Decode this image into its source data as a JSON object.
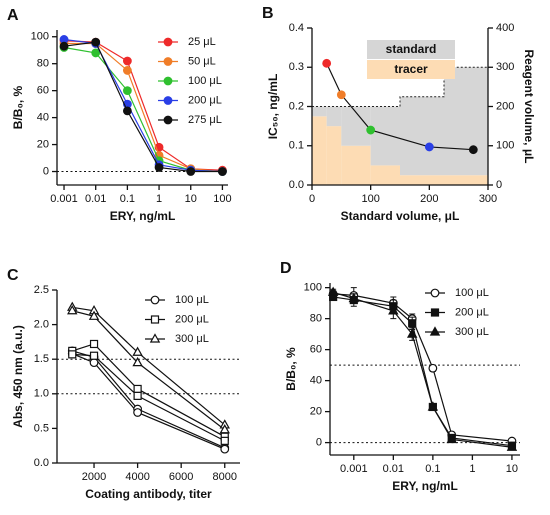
{
  "chart_data": [
    {
      "type": "line",
      "title": "A",
      "xlabel": "ERY, ng/mL",
      "ylabel": "B/B₀, %",
      "log_x": true,
      "xlim": [
        0.0006,
        150
      ],
      "xticks": [
        0.001,
        0.01,
        0.1,
        1,
        10,
        100
      ],
      "ylim": [
        -10,
        105
      ],
      "yticks": [
        0,
        20,
        40,
        60,
        80,
        100
      ],
      "reference_lines": [
        0
      ],
      "legend": "upper right",
      "x": [
        0.001,
        0.01,
        0.1,
        1,
        10,
        100
      ],
      "series": [
        {
          "name": "25 μL",
          "color": "#ee2a2a",
          "marker": "circle",
          "filled": true,
          "values": [
            97,
            96,
            82,
            18,
            2,
            1
          ]
        },
        {
          "name": "50 μL",
          "color": "#f07d28",
          "marker": "circle",
          "filled": true,
          "values": [
            95,
            95,
            75,
            12,
            2,
            0
          ]
        },
        {
          "name": "100 μL",
          "color": "#2fc02f",
          "marker": "circle",
          "filled": true,
          "values": [
            92,
            88,
            60,
            8,
            1,
            0
          ]
        },
        {
          "name": "200 μL",
          "color": "#2a3fe6",
          "marker": "circle",
          "filled": true,
          "values": [
            98,
            95,
            50,
            5,
            1,
            0
          ]
        },
        {
          "name": "275 μL",
          "color": "#111111",
          "marker": "circle",
          "filled": true,
          "values": [
            93,
            96,
            45,
            3,
            0,
            0
          ]
        }
      ]
    },
    {
      "type": "line",
      "title": "B",
      "xlabel": "Standard volume, μL",
      "ylabel": "IC₅₀, ng/mL",
      "y2label": "Reagent volume, μL",
      "xlim": [
        0,
        300
      ],
      "xticks": [
        0,
        100,
        200,
        300
      ],
      "ylim": [
        0,
        0.4
      ],
      "yticks": [
        {
          "value": 0,
          "label": "0.0"
        },
        0.1,
        0.2,
        0.3,
        0.4
      ],
      "y2lim": [
        0,
        400
      ],
      "y2ticks": [
        0,
        100,
        200,
        300,
        400
      ],
      "background": {
        "axis": "y2",
        "bins": [
          0,
          25,
          50,
          100,
          150,
          225,
          300
        ],
        "series": [
          {
            "name": "tracer",
            "color": "#fddcb4",
            "values": [
              175,
              150,
              100,
              50,
              25,
              25
            ]
          },
          {
            "name": "standard",
            "color": "#d6d6d6",
            "values": [
              25,
              50,
              100,
              150,
              200,
              275
            ]
          }
        ]
      },
      "x": [
        25,
        50,
        100,
        200,
        275
      ],
      "series": [
        {
          "color": "#111111",
          "marker": "circle",
          "filled": true,
          "point_colors": [
            "#ee2a2a",
            "#f07d28",
            "#2fc02f",
            "#2a3fe6",
            "#111111"
          ],
          "values": [
            0.31,
            0.23,
            0.14,
            0.097,
            0.09
          ]
        }
      ]
    },
    {
      "type": "line",
      "title": "C",
      "xlabel": "Coating antibody, titer",
      "ylabel": "Abs, 450 nm (a.u.)",
      "xlim": [
        300,
        8700
      ],
      "xticks": [
        2000,
        4000,
        6000,
        8000
      ],
      "ylim": [
        0,
        2.5
      ],
      "yticks": [
        {
          "value": 0,
          "label": "0.0"
        },
        0.5,
        {
          "value": 1,
          "label": "1.0"
        },
        1.5,
        {
          "value": 2,
          "label": "2.0"
        },
        2.5
      ],
      "reference_lines": [
        1,
        1.5
      ],
      "legend": "upper right",
      "x": [
        1000,
        2000,
        4000,
        8000
      ],
      "series": [
        {
          "name": "100 μL",
          "color": "#111111",
          "marker": "circle",
          "filled": false,
          "runs": [
            [
              1.62,
              1.53,
              0.78,
              0.22
            ],
            [
              1.58,
              1.45,
              0.73,
              0.2
            ]
          ]
        },
        {
          "name": "200 μL",
          "color": "#111111",
          "marker": "square",
          "filled": false,
          "runs": [
            [
              1.62,
              1.72,
              1.07,
              0.38
            ],
            [
              1.57,
              1.55,
              0.97,
              0.32
            ]
          ]
        },
        {
          "name": "300 μL",
          "color": "#111111",
          "marker": "triangle",
          "filled": false,
          "runs": [
            [
              2.25,
              2.2,
              1.6,
              0.55
            ],
            [
              2.2,
              2.12,
              1.45,
              0.48
            ]
          ]
        }
      ]
    },
    {
      "type": "line",
      "title": "D",
      "xlabel": "ERY, ng/mL",
      "ylabel": "B/B₀, %",
      "log_x": true,
      "xlim": [
        0.00025,
        16
      ],
      "xticks": [
        0.001,
        0.01,
        0.1,
        1,
        10
      ],
      "ylim": [
        -8,
        103
      ],
      "yticks": [
        0,
        20,
        40,
        60,
        80,
        100
      ],
      "reference_lines": [
        0,
        50
      ],
      "legend": "upper right",
      "x": [
        0.0003,
        0.001,
        0.01,
        0.03,
        0.1,
        0.3,
        10
      ],
      "series": [
        {
          "name": "100 μL",
          "color": "#111111",
          "marker": "circle",
          "filled": false,
          "values": [
            96,
            95,
            90,
            80,
            48,
            5,
            1
          ],
          "errors": [
            2,
            5,
            4,
            3,
            2,
            1,
            1
          ]
        },
        {
          "name": "200 μL",
          "color": "#111111",
          "marker": "square",
          "filled": true,
          "values": [
            94,
            92,
            88,
            77,
            23,
            3,
            -2
          ],
          "errors": [
            2,
            4,
            4,
            4,
            1,
            1,
            1
          ]
        },
        {
          "name": "300 μL",
          "color": "#111111",
          "marker": "triangle",
          "filled": true,
          "values": [
            97,
            93,
            85,
            70,
            23,
            2,
            -3
          ],
          "errors": [
            2,
            3,
            5,
            4,
            1,
            1,
            1
          ]
        }
      ]
    }
  ]
}
